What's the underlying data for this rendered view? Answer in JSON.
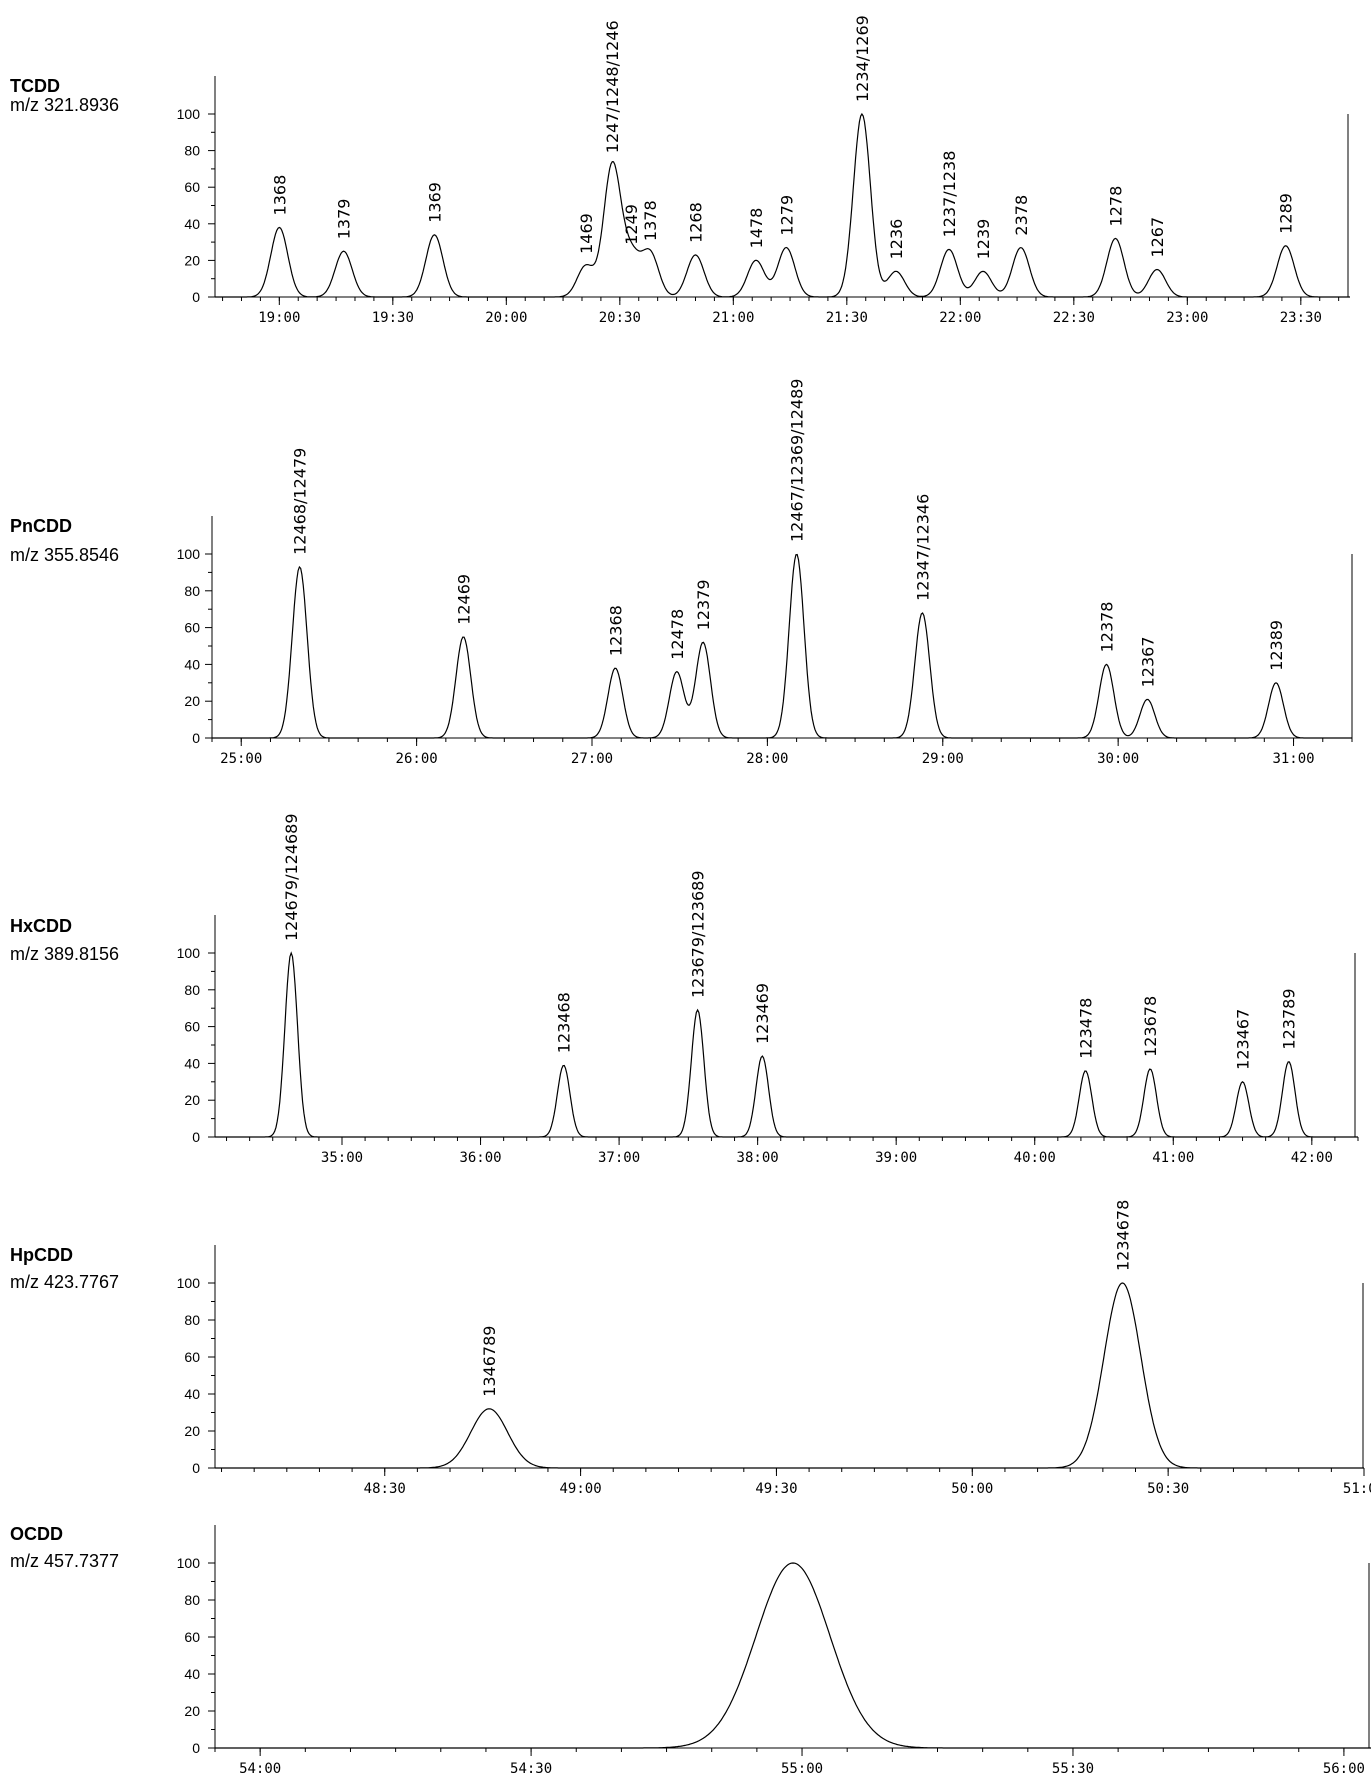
{
  "chart_data": [
    {
      "type": "line",
      "title": "TCDD",
      "subtitle": "m/z 321.8936",
      "xlabel": "",
      "ylabel": "",
      "xlim": [
        "18:43",
        "23:43"
      ],
      "ylim": [
        0,
        100
      ],
      "yticks": [
        0,
        20,
        40,
        60,
        80,
        100
      ],
      "xticks": [
        "19:00",
        "19:30",
        "20:00",
        "20:30",
        "21:00",
        "21:30",
        "22:00",
        "22:30",
        "23:00",
        "23:30"
      ],
      "peaks": [
        {
          "time": "19:00",
          "height": 38,
          "label": "1368"
        },
        {
          "time": "19:17",
          "height": 25,
          "label": "1379"
        },
        {
          "time": "19:41",
          "height": 34,
          "label": "1369"
        },
        {
          "time": "20:21",
          "height": 17,
          "label": "1469"
        },
        {
          "time": "20:28",
          "height": 72,
          "label": "1247/1248/1246"
        },
        {
          "time": "20:33",
          "height": 22,
          "label": "1249"
        },
        {
          "time": "20:38",
          "height": 24,
          "label": "1378"
        },
        {
          "time": "20:50",
          "height": 23,
          "label": "1268"
        },
        {
          "time": "21:06",
          "height": 20,
          "label": "1478"
        },
        {
          "time": "21:14",
          "height": 27,
          "label": "1279"
        },
        {
          "time": "21:34",
          "height": 100,
          "label": "1234/1269"
        },
        {
          "time": "21:43",
          "height": 14,
          "label": "1236"
        },
        {
          "time": "21:57",
          "height": 26,
          "label": "1237/1238"
        },
        {
          "time": "22:06",
          "height": 14,
          "label": "1239"
        },
        {
          "time": "22:16",
          "height": 27,
          "label": "2378"
        },
        {
          "time": "22:41",
          "height": 32,
          "label": "1278"
        },
        {
          "time": "22:52",
          "height": 15,
          "label": "1267"
        },
        {
          "time": "23:26",
          "height": 28,
          "label": "1289"
        }
      ]
    },
    {
      "type": "line",
      "title": "PnCDD",
      "subtitle": "m/z 355.8546",
      "xlabel": "",
      "ylabel": "",
      "xlim": [
        "24:50",
        "31:20"
      ],
      "ylim": [
        0,
        100
      ],
      "yticks": [
        0,
        20,
        40,
        60,
        80,
        100
      ],
      "xticks": [
        "25:00",
        "26:00",
        "27:00",
        "28:00",
        "29:00",
        "30:00",
        "31:00"
      ],
      "peaks": [
        {
          "time": "25:20",
          "height": 93,
          "label": "12468/12479"
        },
        {
          "time": "26:16",
          "height": 55,
          "label": "12469"
        },
        {
          "time": "27:08",
          "height": 38,
          "label": "12368"
        },
        {
          "time": "27:29",
          "height": 36,
          "label": "12478"
        },
        {
          "time": "27:38",
          "height": 52,
          "label": "12379"
        },
        {
          "time": "28:10",
          "height": 100,
          "label": "12467/12369/12489"
        },
        {
          "time": "28:53",
          "height": 68,
          "label": "12347/12346"
        },
        {
          "time": "29:56",
          "height": 40,
          "label": "12378"
        },
        {
          "time": "30:10",
          "height": 21,
          "label": "12367"
        },
        {
          "time": "30:54",
          "height": 30,
          "label": "12389"
        }
      ]
    },
    {
      "type": "line",
      "title": "HxCDD",
      "subtitle": "m/z 389.8156",
      "xlabel": "",
      "ylabel": "",
      "xlim": [
        "34:05",
        "42:20"
      ],
      "ylim": [
        0,
        100
      ],
      "yticks": [
        0,
        20,
        40,
        60,
        80,
        100
      ],
      "xticks": [
        "35:00",
        "36:00",
        "37:00",
        "38:00",
        "39:00",
        "40:00",
        "41:00",
        "42:00"
      ],
      "peaks": [
        {
          "time": "34:38",
          "height": 100,
          "label": "124679/124689"
        },
        {
          "time": "36:36",
          "height": 39,
          "label": "123468"
        },
        {
          "time": "37:34",
          "height": 69,
          "label": "123679/123689"
        },
        {
          "time": "38:02",
          "height": 44,
          "label": "123469"
        },
        {
          "time": "40:22",
          "height": 36,
          "label": "123478"
        },
        {
          "time": "40:50",
          "height": 37,
          "label": "123678"
        },
        {
          "time": "41:30",
          "height": 30,
          "label": "123467"
        },
        {
          "time": "41:50",
          "height": 41,
          "label": "123789"
        }
      ]
    },
    {
      "type": "line",
      "title": "HpCDD",
      "subtitle": "m/z 423.7767",
      "xlabel": "",
      "ylabel": "",
      "xlim": [
        "48:04",
        "51:00"
      ],
      "ylim": [
        0,
        100
      ],
      "yticks": [
        0,
        20,
        40,
        60,
        80,
        100
      ],
      "xticks": [
        "48:30",
        "49:00",
        "49:30",
        "50:00",
        "50:30",
        "51:00"
      ],
      "peaks": [
        {
          "time": "48:46",
          "height": 32,
          "label": "1346789"
        },
        {
          "time": "50:23",
          "height": 100,
          "label": "1234678"
        }
      ]
    },
    {
      "type": "line",
      "title": "OCDD",
      "subtitle": "m/z 457.7377",
      "xlabel": "",
      "ylabel": "",
      "xlim": [
        "53:55",
        "56:03"
      ],
      "ylim": [
        0,
        100
      ],
      "yticks": [
        0,
        20,
        40,
        60,
        80,
        100
      ],
      "xticks": [
        "54:00",
        "54:30",
        "55:00",
        "55:30",
        "56:00"
      ],
      "peaks": [
        {
          "time": "54:59",
          "height": 100,
          "label": ""
        }
      ]
    }
  ]
}
